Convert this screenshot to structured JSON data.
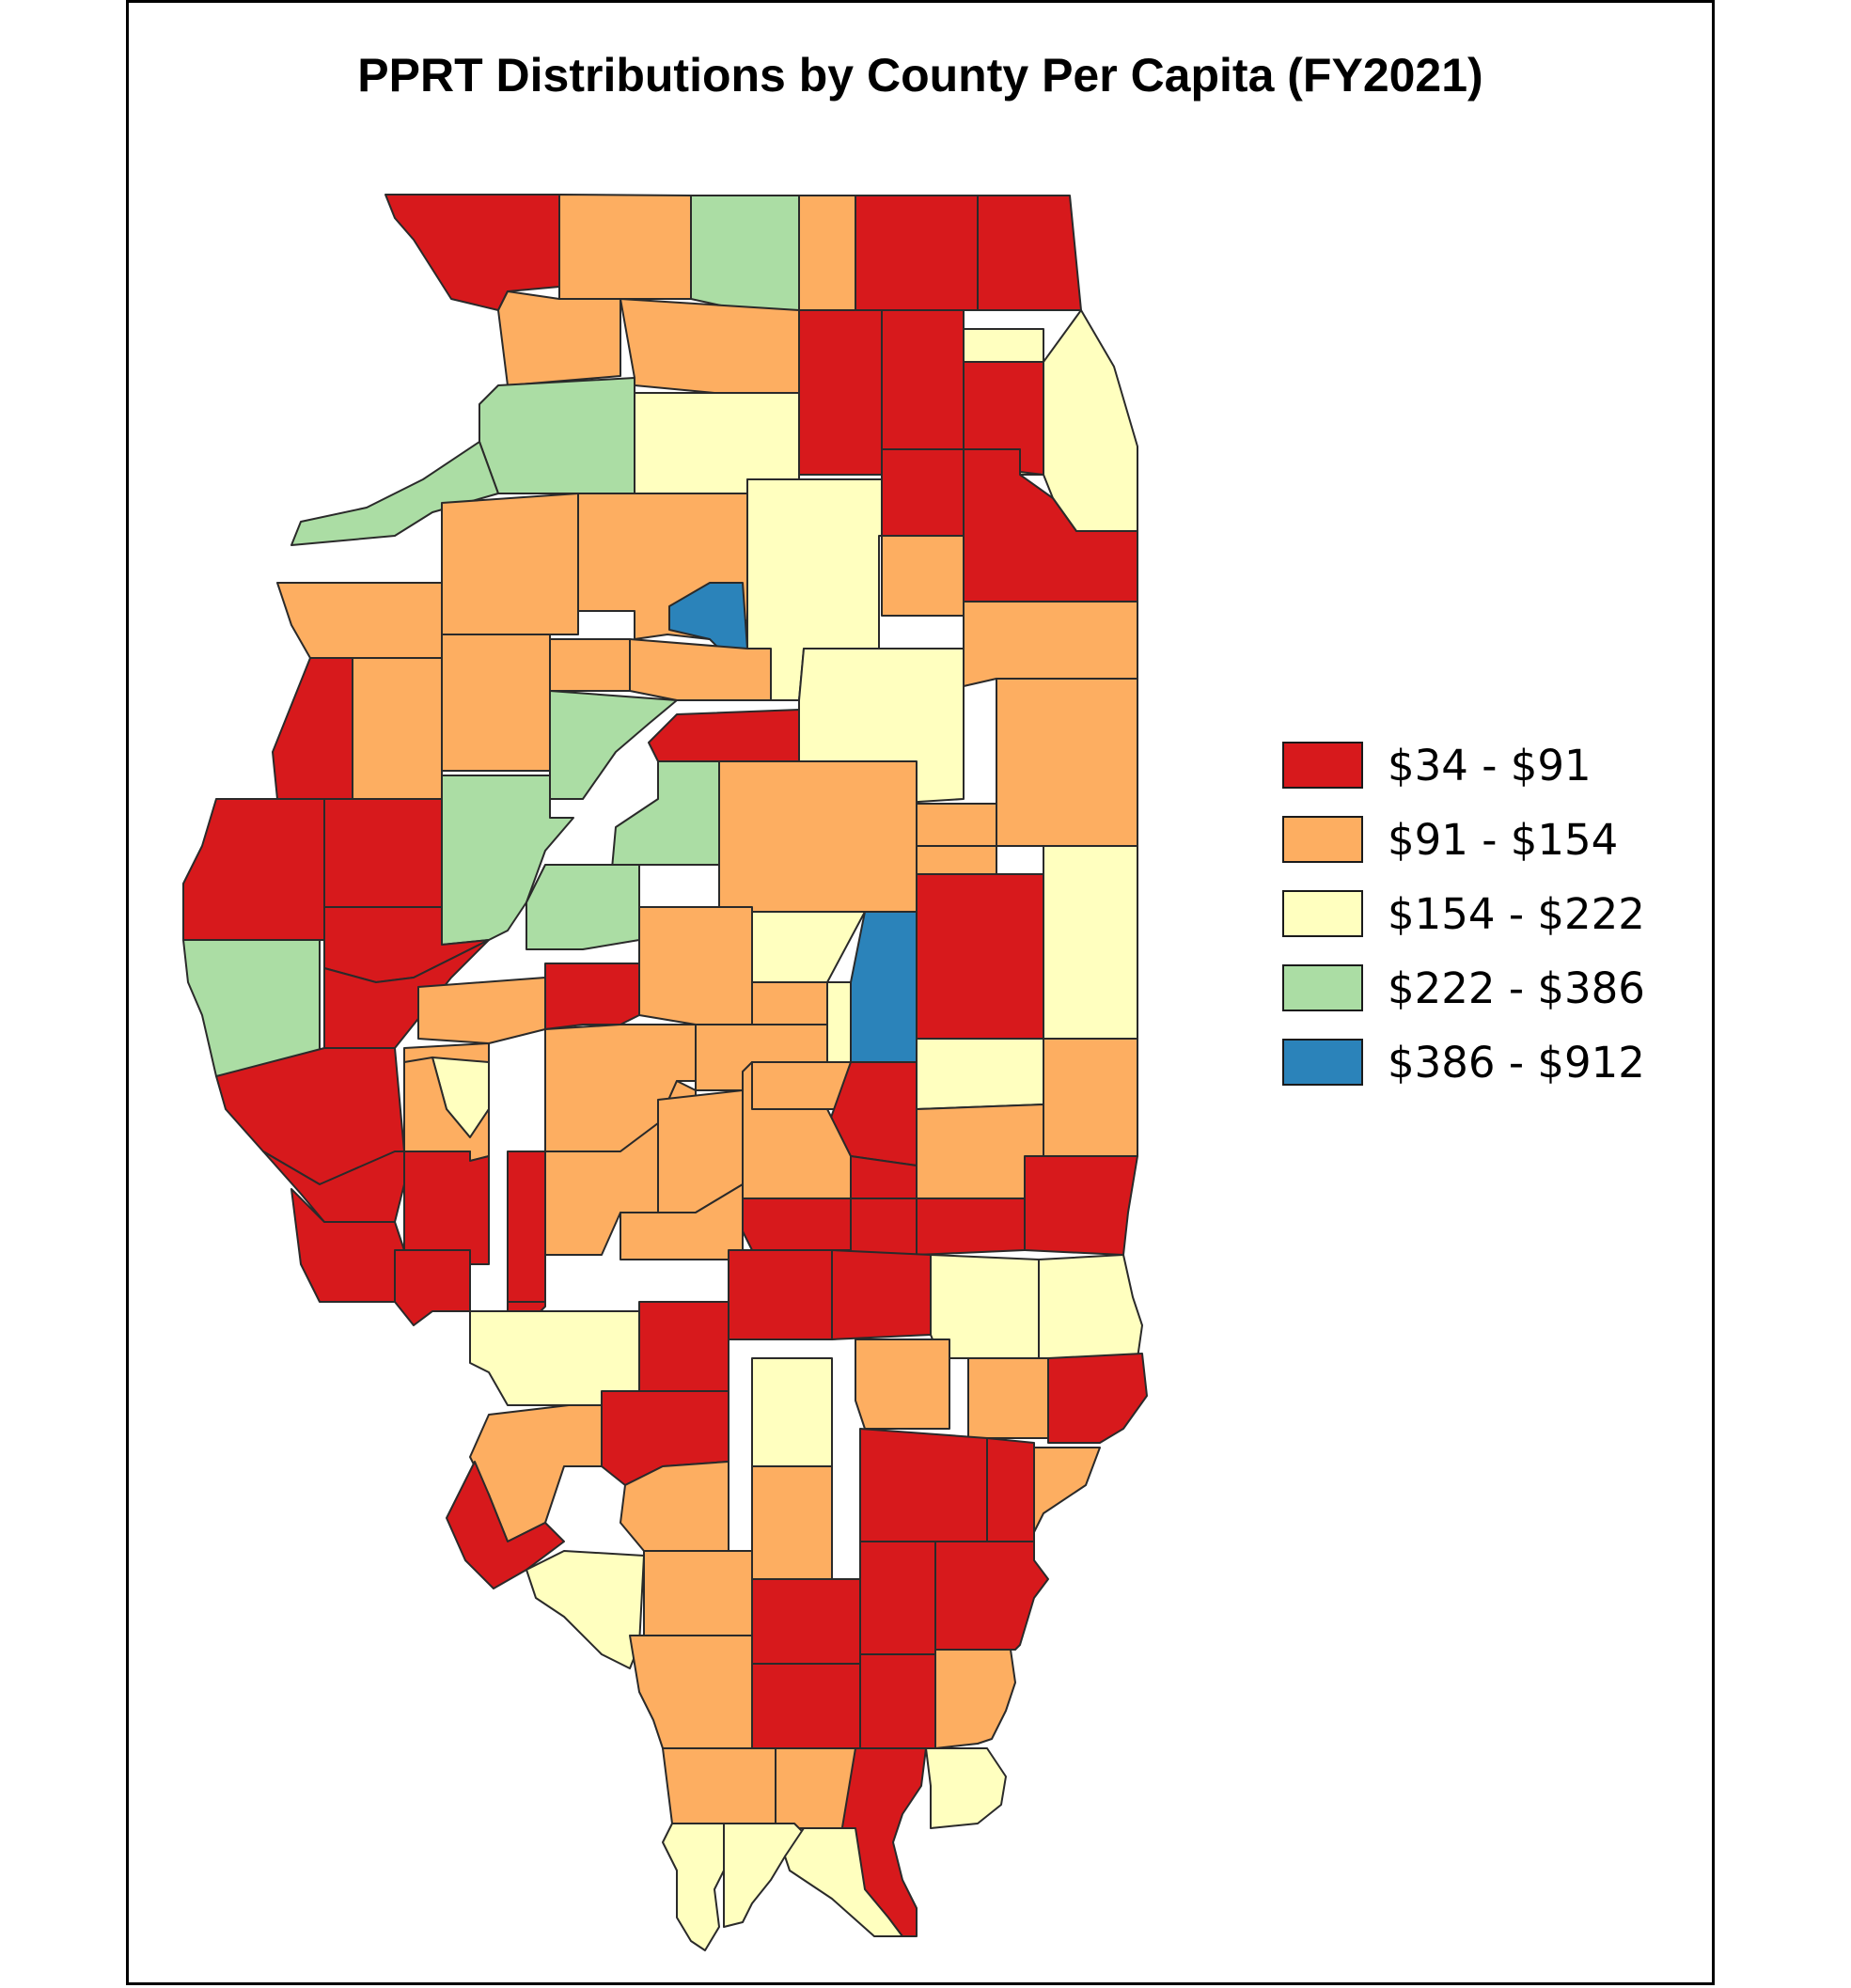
{
  "title": "PPRT Distributions by County Per Capita (FY2021)",
  "colors": {
    "c1": "#d7191c",
    "c2": "#fdae61",
    "c3": "#ffffbf",
    "c4": "#abdda4",
    "c5": "#2b83ba",
    "border": "#2a2a2a"
  },
  "legend": [
    {
      "label": "$34 - $91",
      "color": "#d7191c"
    },
    {
      "label": "$91 - $154",
      "color": "#fdae61"
    },
    {
      "label": "$154 - $222",
      "color": "#ffffbf"
    },
    {
      "label": "$222 - $386",
      "color": "#abdda4"
    },
    {
      "label": "$386 - $912",
      "color": "#2b83ba"
    }
  ]
}
